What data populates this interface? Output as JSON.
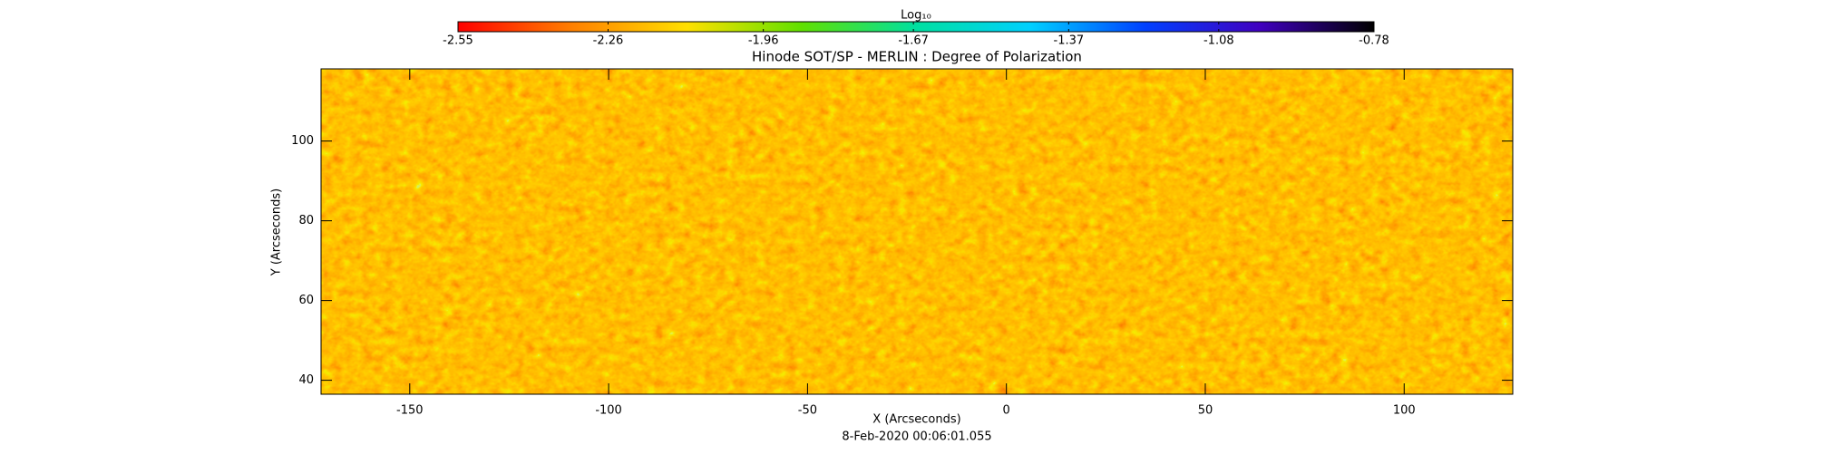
{
  "chart_data": {
    "type": "heatmap",
    "title": "Hinode SOT/SP - MERLIN : Degree of Polarization",
    "x_label": "X (Arcseconds)",
    "y_label": "Y (Arcseconds)",
    "date": "8-Feb-2020 00:06:01.055",
    "xlim": [
      -172.3,
      127.3
    ],
    "xticks": [
      -150,
      -100,
      -50,
      0,
      50,
      100
    ],
    "ylim": [
      36.5,
      118.1
    ],
    "yticks": [
      40,
      60,
      80,
      100
    ],
    "colorbar": {
      "label": "Log₁₀",
      "lim": [
        -2.55,
        -0.78
      ],
      "ticks": [
        -2.55,
        -2.26,
        -1.96,
        -1.67,
        -1.37,
        -1.08,
        -0.78
      ],
      "colors": [
        "#ff0000",
        "#ff8000",
        "#ffe000",
        "#60e000",
        "#00e0a0",
        "#00d0ff",
        "#0040ff",
        "#4000c0",
        "#000000"
      ]
    }
  }
}
